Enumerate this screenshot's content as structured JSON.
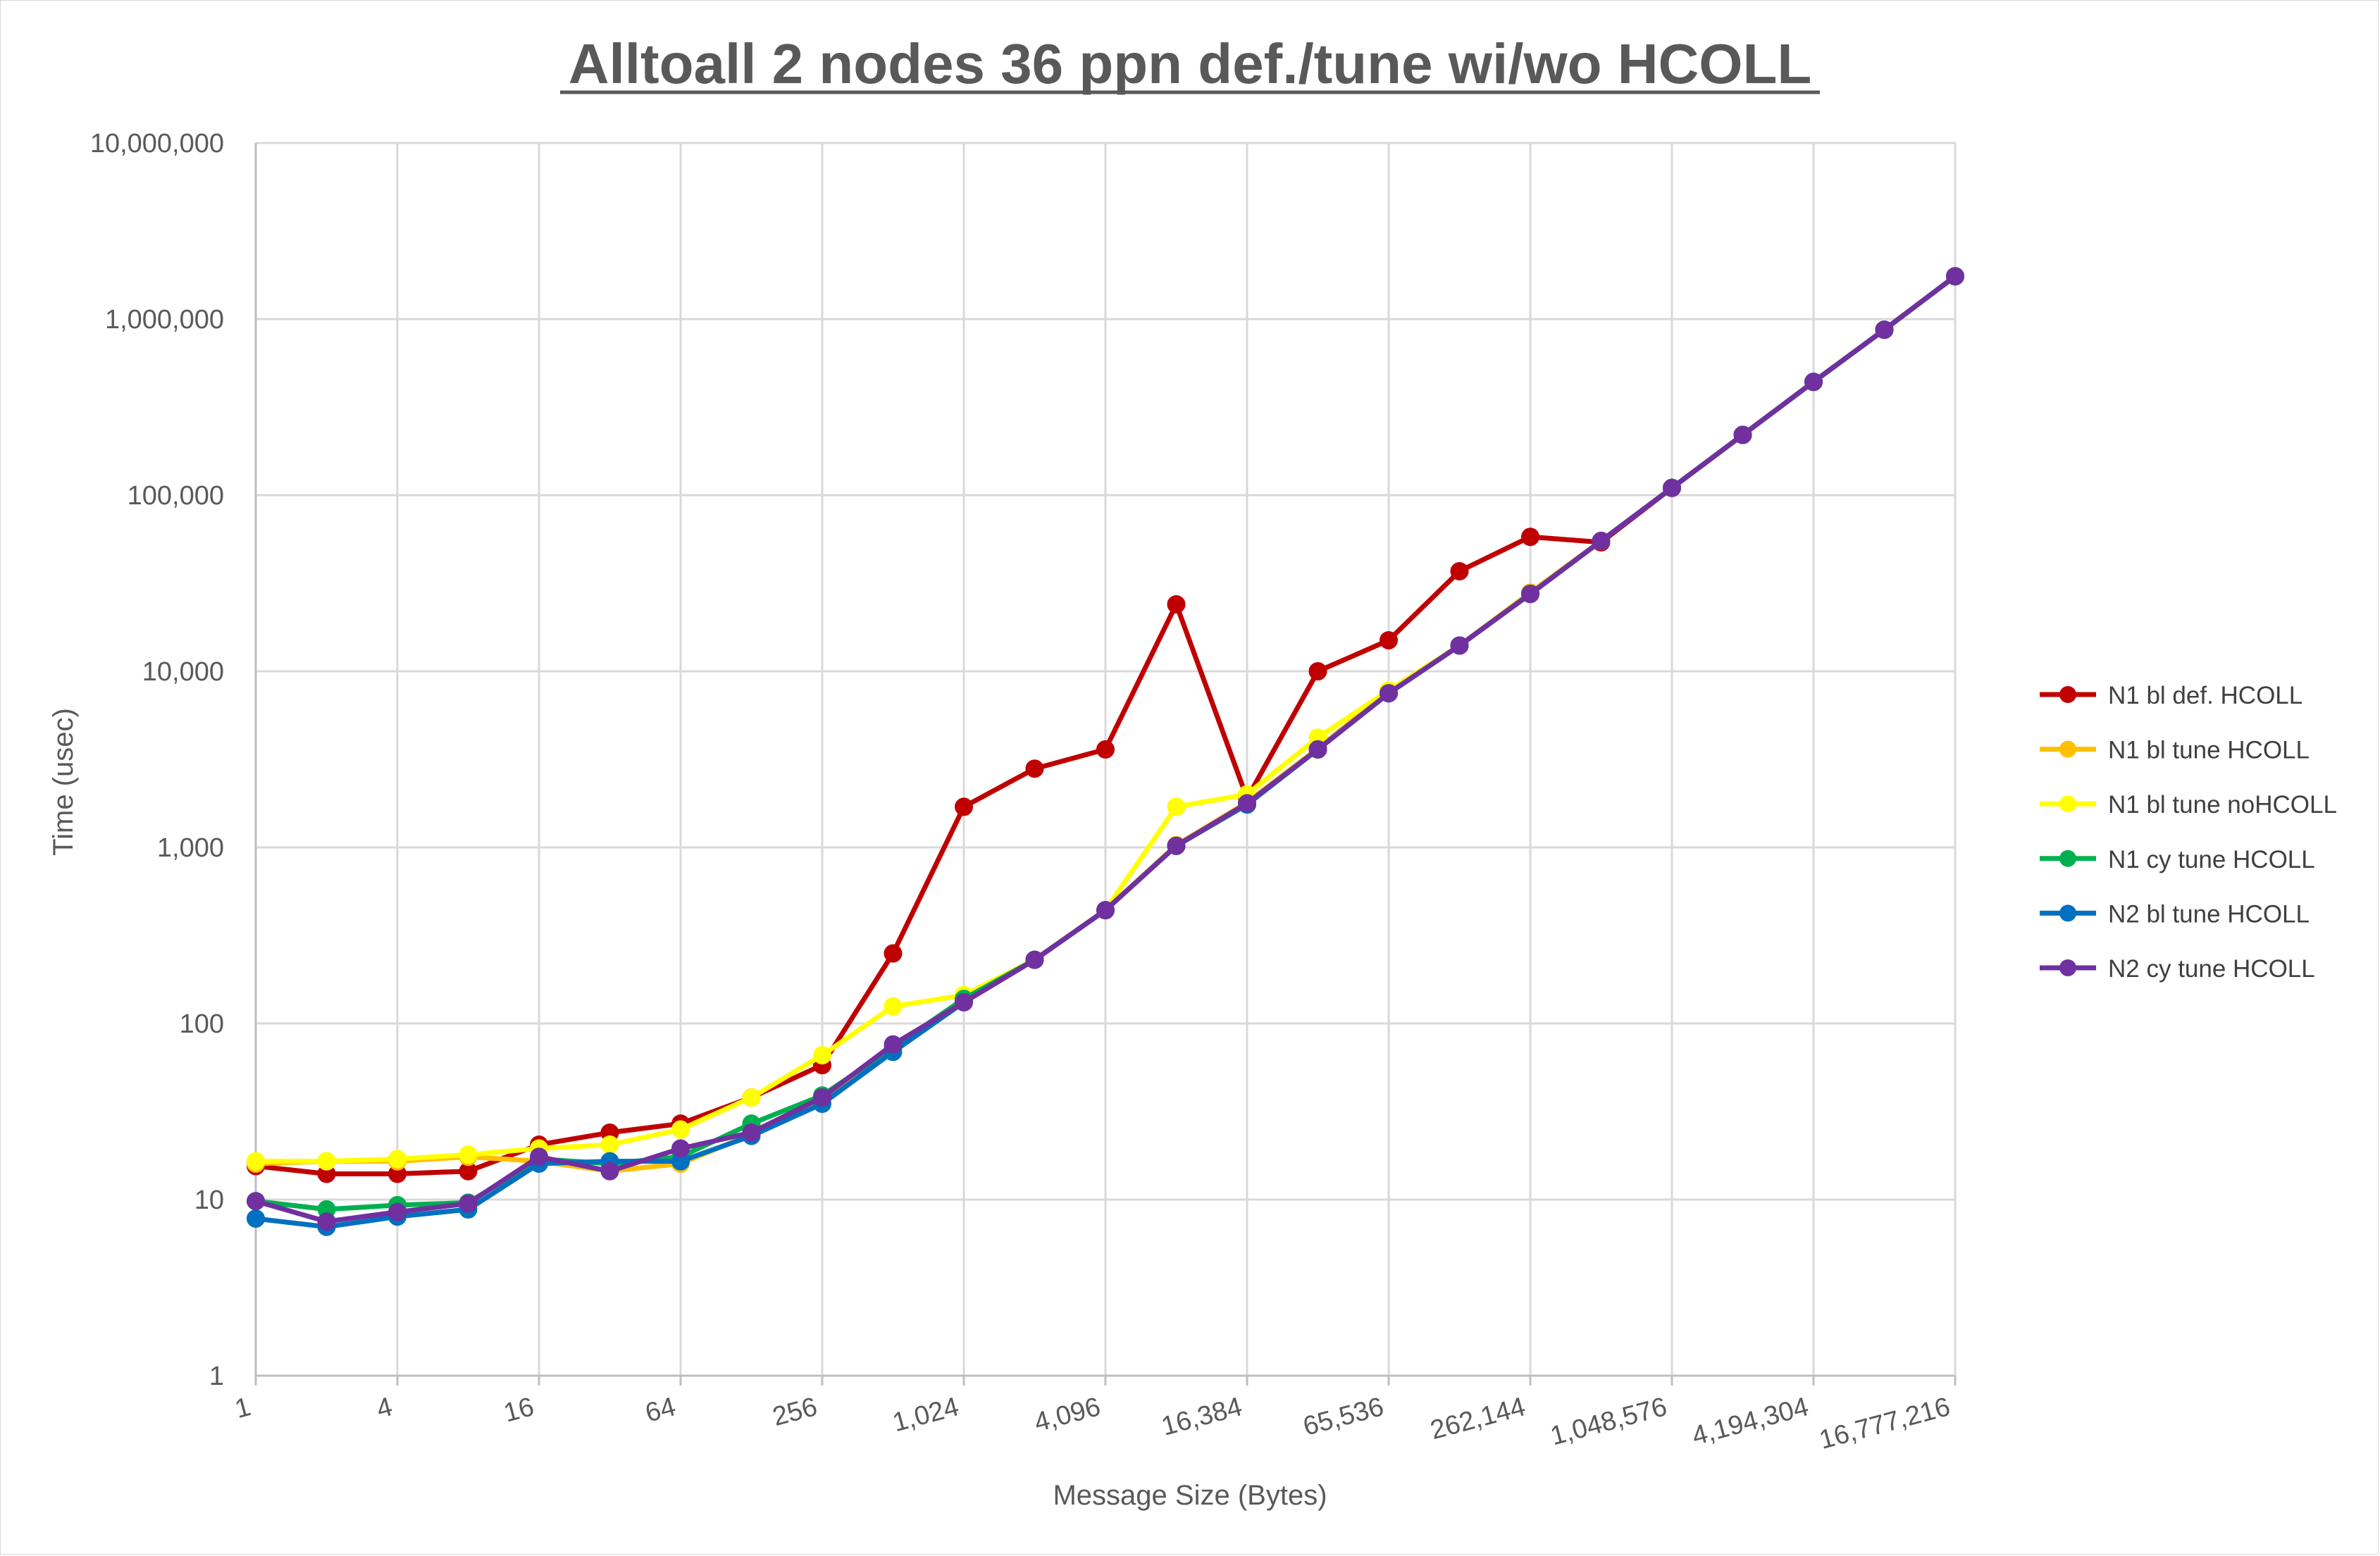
{
  "chart_data": {
    "type": "line",
    "title": "Alltoall 2 nodes 36 ppn def./tune wi/wo HCOLL",
    "xlabel": "Message Size (Bytes)",
    "ylabel": "Time (usec)",
    "x_scale": "log2",
    "y_scale": "log10",
    "ylim": [
      1,
      10000000
    ],
    "grid": true,
    "legend_position": "right",
    "x": [
      1,
      2,
      4,
      8,
      16,
      32,
      64,
      128,
      256,
      512,
      1024,
      2048,
      4096,
      8192,
      16384,
      32768,
      65536,
      131072,
      262144,
      524288,
      1048576,
      2097152,
      4194304,
      8388608,
      16777216
    ],
    "x_tick_labels": [
      "1",
      "4",
      "16",
      "64",
      "256",
      "1,024",
      "4,096",
      "16,384",
      "65,536",
      "262,144",
      "1,048,576",
      "4,194,304",
      "16,777,216"
    ],
    "y_tick_labels": [
      "1",
      "10",
      "100",
      "1,000",
      "10,000",
      "100,000",
      "1,000,000",
      "10,000,000"
    ],
    "series": [
      {
        "name": "N1 bl def. HCOLL",
        "color": "#c00000",
        "values": [
          15.5,
          14,
          14,
          14.5,
          20.5,
          24,
          27,
          38,
          58,
          250,
          1700,
          2800,
          3600,
          24000,
          1900,
          10000,
          15000,
          37000,
          58000,
          54000,
          110000,
          220000,
          440000,
          870000,
          1750000
        ]
      },
      {
        "name": "N1 bl tune HCOLL",
        "color": "#ffc000",
        "values": [
          16,
          16.5,
          16.5,
          17.5,
          16.5,
          14.5,
          16,
          23.5,
          37,
          74,
          135,
          230,
          440,
          1030,
          1800,
          3650,
          7700,
          14000,
          28000,
          55000,
          110000,
          220000,
          440000,
          870000,
          1750000
        ]
      },
      {
        "name": "N1 bl tune noHCOLL",
        "color": "#ffff00",
        "values": [
          16.5,
          16.5,
          17,
          18,
          19.5,
          20.5,
          25,
          38,
          66,
          125,
          145,
          230,
          440,
          1700,
          2000,
          4200,
          7800,
          14000,
          27500,
          55000,
          110000,
          220000,
          440000,
          870000,
          1750000
        ]
      },
      {
        "name": "N1 cy tune HCOLL",
        "color": "#00b050",
        "values": [
          9.8,
          8.8,
          9.3,
          9.6,
          17,
          16,
          17.5,
          27,
          39,
          73,
          138,
          230,
          440,
          1020,
          1760,
          3600,
          7500,
          14000,
          27500,
          55000,
          110000,
          220000,
          440000,
          870000,
          1750000
        ]
      },
      {
        "name": "N2 bl tune HCOLL",
        "color": "#0070c0",
        "values": [
          7.8,
          7,
          8,
          8.8,
          16,
          16.5,
          16.5,
          23,
          35,
          69,
          132,
          230,
          440,
          1020,
          1750,
          3600,
          7500,
          14000,
          27500,
          55000,
          110000,
          220000,
          440000,
          870000,
          1750000
        ]
      },
      {
        "name": "N2 cy tune HCOLL",
        "color": "#7030a0",
        "values": [
          9.8,
          7.5,
          8.5,
          9.5,
          17.5,
          14.5,
          19.5,
          24,
          38,
          76,
          132,
          230,
          440,
          1020,
          1780,
          3600,
          7500,
          14000,
          27500,
          55000,
          110000,
          220000,
          440000,
          870000,
          1750000
        ]
      }
    ]
  }
}
